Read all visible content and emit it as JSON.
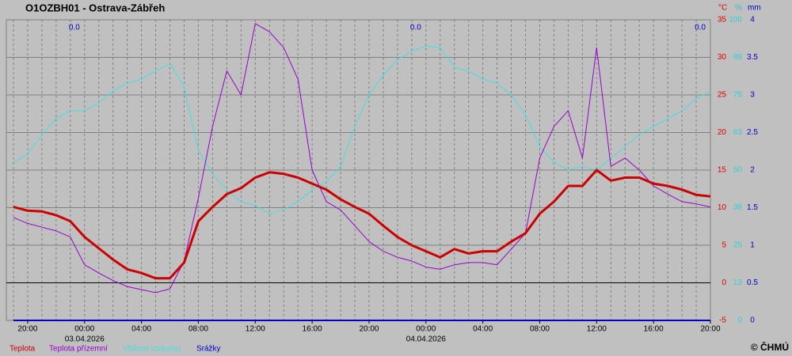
{
  "chart_data": {
    "type": "line",
    "title": "O1OZBH01 - Ostrava-Zábřeh",
    "y_unit": "°C",
    "y2_unit": "%",
    "y3_unit": "mm",
    "credit": "© ČHMÚ",
    "x": [
      "2026-04-02T19:00",
      "2026-04-02T20:00",
      "2026-04-02T21:00",
      "2026-04-02T22:00",
      "2026-04-02T23:00",
      "2026-04-03T00:00",
      "2026-04-03T01:00",
      "2026-04-03T02:00",
      "2026-04-03T03:00",
      "2026-04-03T04:00",
      "2026-04-03T05:00",
      "2026-04-03T06:00",
      "2026-04-03T07:00",
      "2026-04-03T08:00",
      "2026-04-03T09:00",
      "2026-04-03T10:00",
      "2026-04-03T11:00",
      "2026-04-03T12:00",
      "2026-04-03T13:00",
      "2026-04-03T14:00",
      "2026-04-03T15:00",
      "2026-04-03T16:00",
      "2026-04-03T17:00",
      "2026-04-03T18:00",
      "2026-04-03T19:00",
      "2026-04-03T20:00",
      "2026-04-03T21:00",
      "2026-04-03T22:00",
      "2026-04-03T23:00",
      "2026-04-04T00:00",
      "2026-04-04T01:00",
      "2026-04-04T02:00",
      "2026-04-04T03:00",
      "2026-04-04T04:00",
      "2026-04-04T05:00",
      "2026-04-04T06:00",
      "2026-04-04T07:00",
      "2026-04-04T08:00",
      "2026-04-04T09:00",
      "2026-04-04T10:00",
      "2026-04-04T11:00",
      "2026-04-04T12:00",
      "2026-04-04T13:00",
      "2026-04-04T14:00",
      "2026-04-04T15:00",
      "2026-04-04T16:00",
      "2026-04-04T17:00",
      "2026-04-04T18:00",
      "2026-04-04T19:00",
      "2026-04-04T20:00"
    ],
    "xlim": [
      "2026-04-02T18:30",
      "2026-04-04T20:00"
    ],
    "xticks": [
      {
        "value": "2026-04-02T20:00",
        "label": "20:00"
      },
      {
        "value": "2026-04-03T00:00",
        "label": "00:00"
      },
      {
        "value": "2026-04-03T04:00",
        "label": "04:00"
      },
      {
        "value": "2026-04-03T08:00",
        "label": "08:00"
      },
      {
        "value": "2026-04-03T12:00",
        "label": "12:00"
      },
      {
        "value": "2026-04-03T16:00",
        "label": "16:00"
      },
      {
        "value": "2026-04-03T20:00",
        "label": "20:00"
      },
      {
        "value": "2026-04-04T00:00",
        "label": "00:00"
      },
      {
        "value": "2026-04-04T04:00",
        "label": "04:00"
      },
      {
        "value": "2026-04-04T08:00",
        "label": "08:00"
      },
      {
        "value": "2026-04-04T12:00",
        "label": "12:00"
      },
      {
        "value": "2026-04-04T16:00",
        "label": "16:00"
      },
      {
        "value": "2026-04-04T20:00",
        "label": "20:00"
      }
    ],
    "date_labels": [
      {
        "value": "2026-04-03T00:00",
        "label": "03.04.2026"
      },
      {
        "value": "2026-04-04T00:00",
        "label": "04.04.2026"
      }
    ],
    "ylim": [
      -5,
      35
    ],
    "yticks": [
      -5,
      0,
      5,
      10,
      15,
      20,
      25,
      30,
      35
    ],
    "y2lim": [
      0,
      100
    ],
    "y2ticks": [
      0,
      {
        "value": 12.5,
        "label": "13"
      },
      25,
      {
        "value": 37.5,
        "label": "38"
      },
      50,
      {
        "value": 62.5,
        "label": "63"
      },
      75,
      {
        "value": 87.5,
        "label": "88"
      },
      100
    ],
    "y3lim": [
      0,
      4
    ],
    "y3ticks": [
      0,
      0.5,
      1,
      1.5,
      2,
      2.5,
      3,
      3.5,
      4
    ],
    "grid": true,
    "annotations": [
      {
        "x": "2026-04-03T00:00",
        "value": 0,
        "label": "0.0"
      },
      {
        "x": "2026-04-04T00:00",
        "value": 0,
        "label": "0.0"
      },
      {
        "x": "2026-04-04T20:00",
        "value": 0,
        "label": "0.0"
      }
    ],
    "series": [
      {
        "name": "Teplota",
        "color": "#cc0000",
        "axis": "y",
        "width": 3,
        "values": [
          10.1,
          9.6,
          9.5,
          9.0,
          8.2,
          6.1,
          4.6,
          3.1,
          1.8,
          1.3,
          0.6,
          0.6,
          2.7,
          8.2,
          10.1,
          11.8,
          12.6,
          14.0,
          14.7,
          14.5,
          14.0,
          13.2,
          12.4,
          11.1,
          10.1,
          9.2,
          7.6,
          6.1,
          5.0,
          4.2,
          3.4,
          4.5,
          3.9,
          4.2,
          4.2,
          5.5,
          6.6,
          9.2,
          10.8,
          12.9,
          12.9,
          15.0,
          13.6,
          14.0,
          14.0,
          13.2,
          12.9,
          12.4,
          11.7,
          11.5
        ]
      },
      {
        "name": "Teplota přízemní",
        "color": "#9900cc",
        "axis": "y",
        "width": 1,
        "values": [
          8.7,
          7.9,
          7.4,
          6.9,
          6.1,
          2.4,
          1.3,
          0.3,
          -0.5,
          -0.9,
          -1.3,
          -0.8,
          2.9,
          11.3,
          20.8,
          28.2,
          25,
          34.5,
          33.4,
          31.3,
          27.1,
          15.0,
          10.8,
          9.7,
          7.6,
          5.5,
          4.2,
          3.4,
          2.9,
          2.1,
          1.8,
          2.4,
          2.7,
          2.7,
          2.4,
          4.5,
          6.6,
          16.6,
          20.8,
          22.9,
          16.6,
          31.3,
          15.5,
          16.6,
          15.0,
          12.9,
          11.8,
          10.8,
          10.5,
          10.1
        ]
      },
      {
        "name": "Vlhkost vzduchu",
        "color": "#40e0e0",
        "axis": "y2",
        "width": 1,
        "values": [
          52.6,
          55.3,
          61.8,
          67.1,
          69.7,
          69.7,
          72.4,
          76.3,
          78.9,
          80.3,
          82.9,
          85.5,
          77.6,
          56.6,
          48.7,
          43.4,
          39.5,
          38.2,
          35.5,
          36.8,
          39.5,
          43.4,
          46.1,
          51.3,
          64.5,
          75.0,
          81.6,
          86.8,
          89.5,
          91.3,
          90.8,
          84.2,
          82.9,
          80.3,
          78.9,
          75.0,
          68.4,
          57.9,
          52.6,
          50.0,
          51.3,
          50.0,
          53.9,
          57.9,
          61.8,
          64.5,
          67.1,
          69.7,
          73.7,
          76.3
        ]
      },
      {
        "name": "Srážky",
        "color": "#0000cc",
        "axis": "y3",
        "width": 2,
        "values": [
          0,
          0,
          0,
          0,
          0,
          0,
          0,
          0,
          0,
          0,
          0,
          0,
          0,
          0,
          0,
          0,
          0,
          0,
          0,
          0,
          0,
          0,
          0,
          0,
          0,
          0,
          0,
          0,
          0,
          0,
          0,
          0,
          0,
          0,
          0,
          0,
          0,
          0,
          0,
          0,
          0,
          0,
          0,
          0,
          0,
          0,
          0,
          0,
          0,
          0
        ]
      }
    ]
  }
}
